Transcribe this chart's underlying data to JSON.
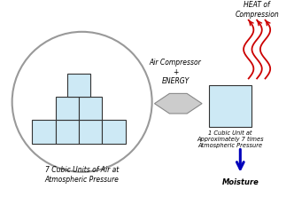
{
  "bg_color": "#ffffff",
  "box_fill": "#cde9f5",
  "box_edge": "#333333",
  "circle_color": "#999999",
  "arrow_fill": "#cccccc",
  "arrow_edge": "#888888",
  "heat_color": "#cc0000",
  "moisture_color": "#0000bb",
  "figsize": [
    3.32,
    2.22
  ],
  "dpi": 100,
  "label_7cubes": "7 Cubic Units of Air at\nAtmospheric Pressure",
  "label_1cube": "1 Cubic Unit at\nApproximately 7 times\nAtmospheric Pressure",
  "label_heat": "HEAT of\nCompression",
  "label_moisture": "Moisture",
  "label_compressor": "Air Compressor\n+\nENERGY"
}
